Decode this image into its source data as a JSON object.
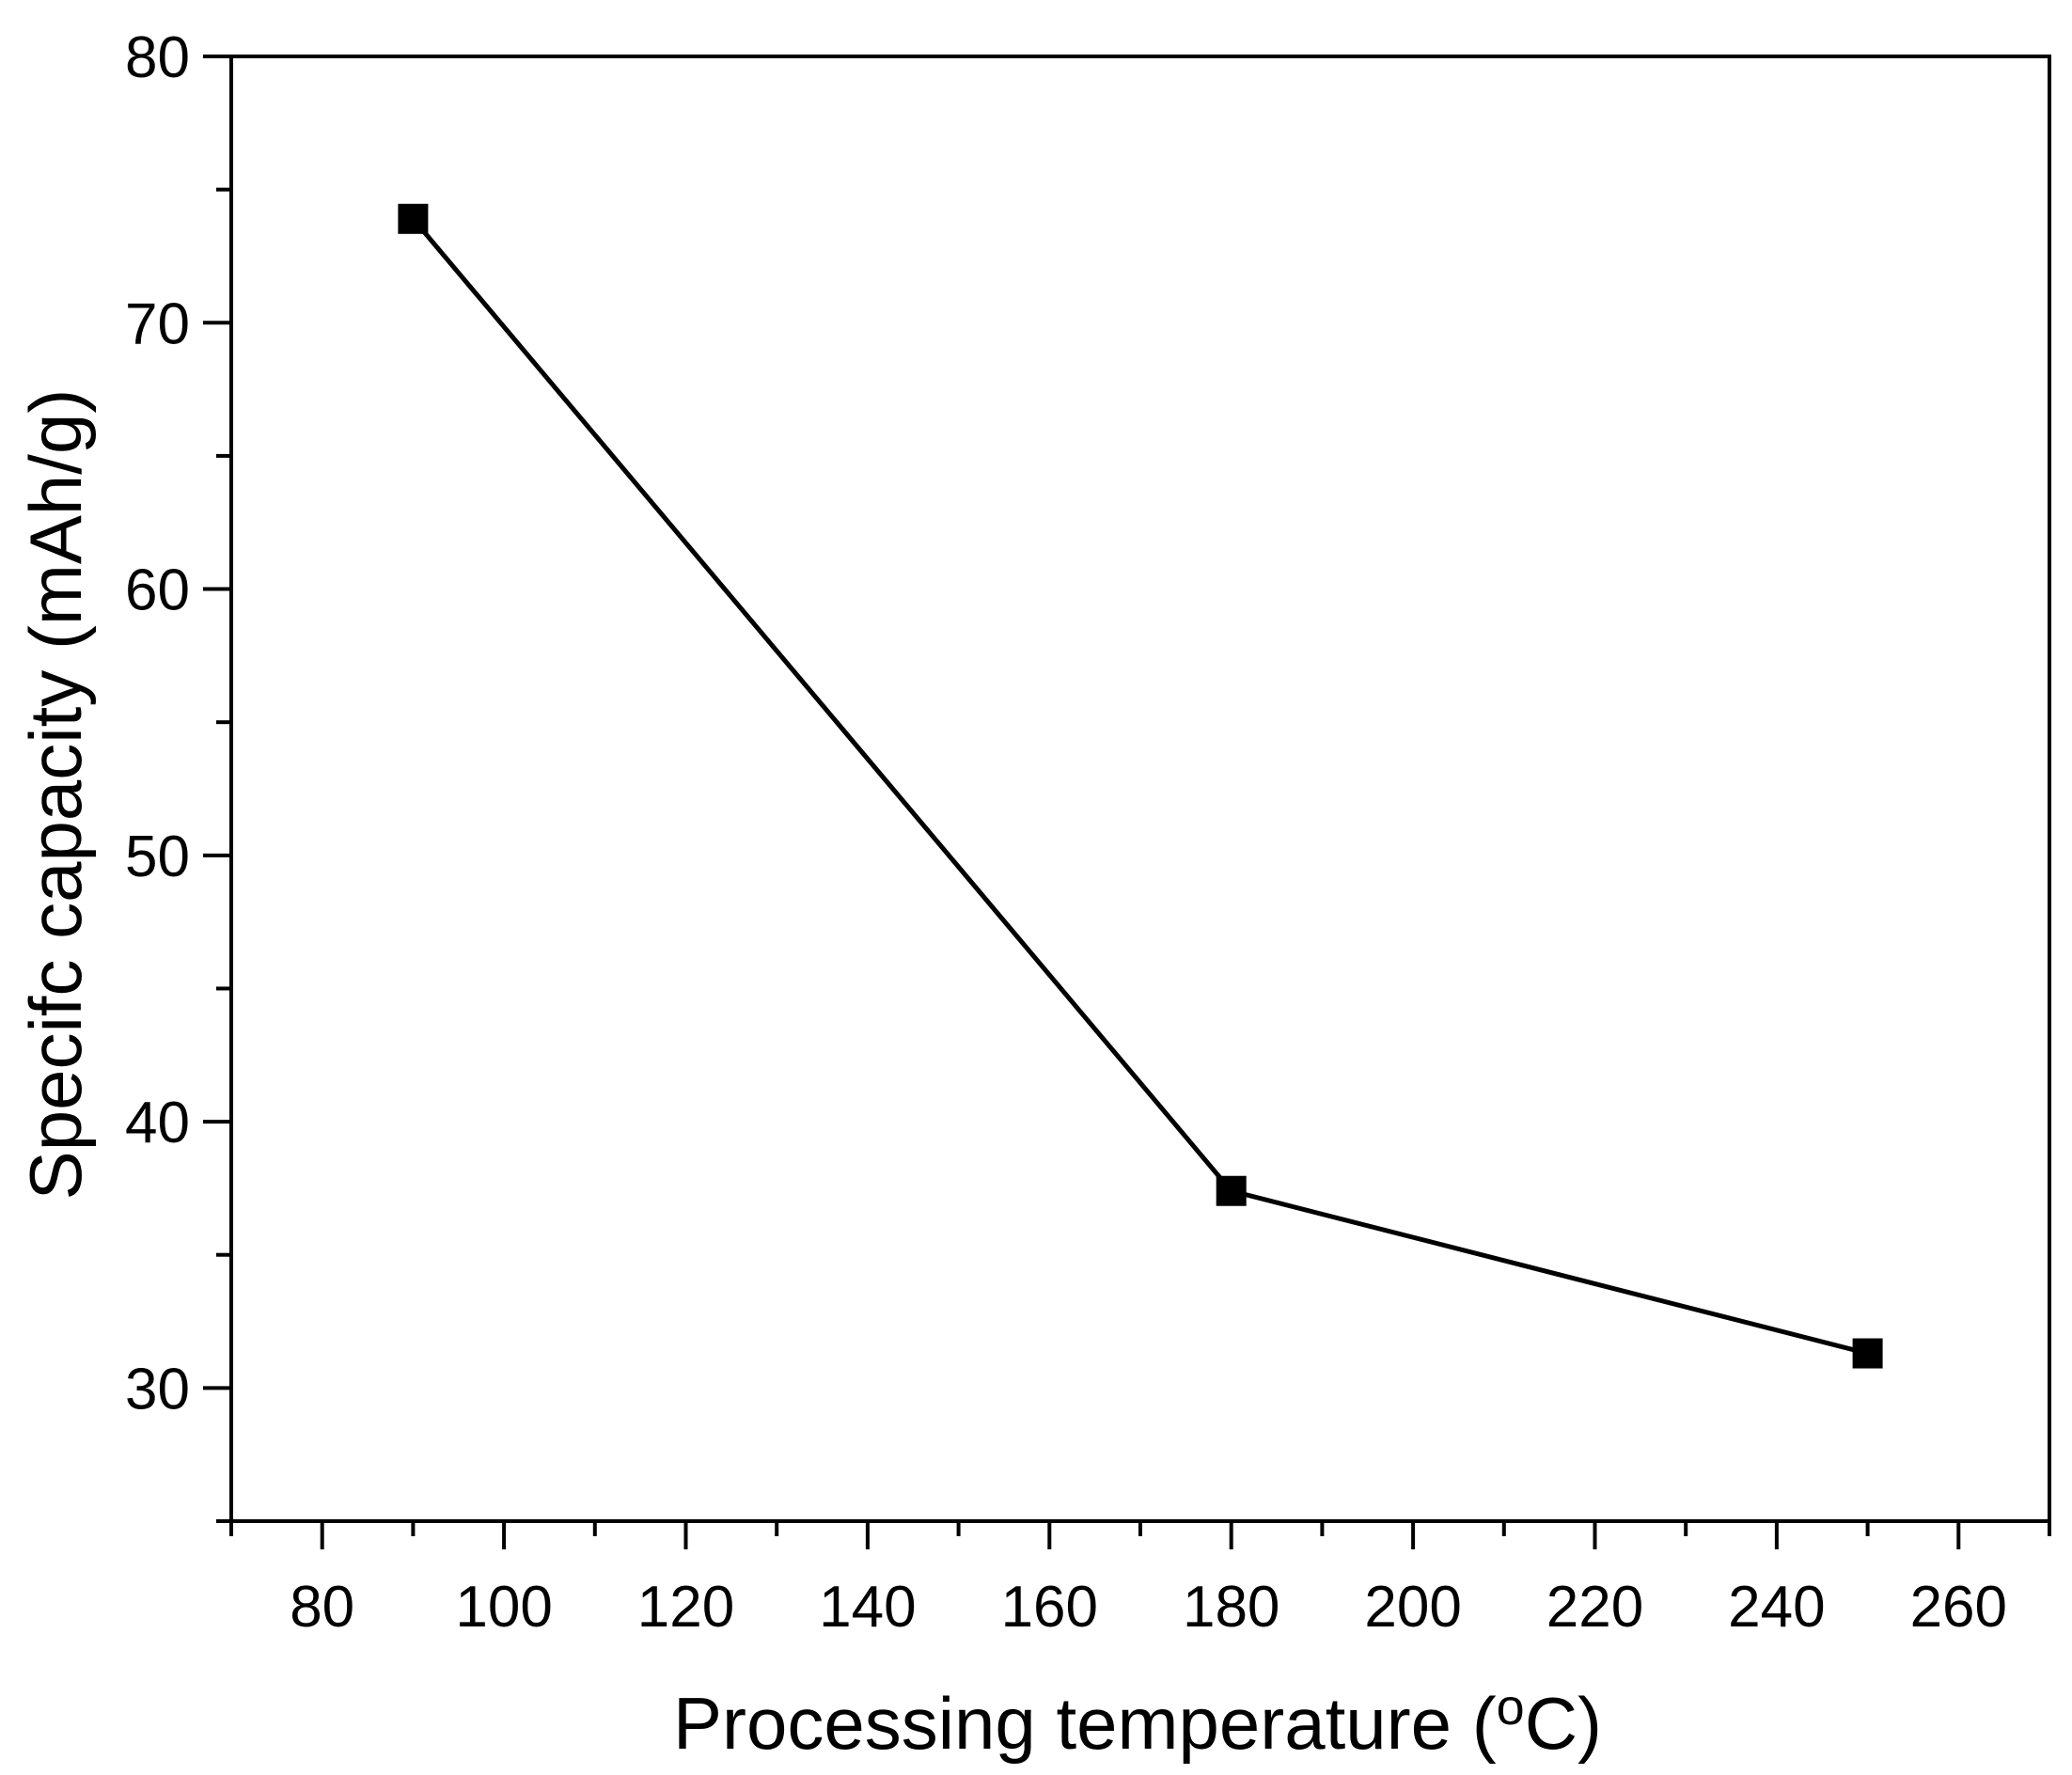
{
  "chart_data": {
    "type": "line",
    "title": "",
    "xlabel": {
      "main": "Processing temperature (",
      "superscript": "o",
      "unit": "C)"
    },
    "ylabel": "Specifc capacity (mAh/g)",
    "xlim": [
      70,
      270
    ],
    "ylim": [
      25,
      80
    ],
    "x_major_ticks": [
      80,
      100,
      120,
      140,
      160,
      180,
      200,
      220,
      240,
      260
    ],
    "x_minor_ticks": [
      70,
      90,
      110,
      130,
      150,
      170,
      190,
      210,
      230,
      250,
      270
    ],
    "y_major_ticks": [
      30,
      40,
      50,
      60,
      70,
      80
    ],
    "y_minor_ticks": [
      25,
      35,
      45,
      55,
      65,
      75
    ],
    "grid": false,
    "legend": "none",
    "series": [
      {
        "name": "Specific capacity",
        "marker": "square",
        "color": "#000000",
        "x": [
          90,
          180,
          250
        ],
        "y": [
          73.9,
          37.4,
          31.3
        ]
      }
    ]
  }
}
